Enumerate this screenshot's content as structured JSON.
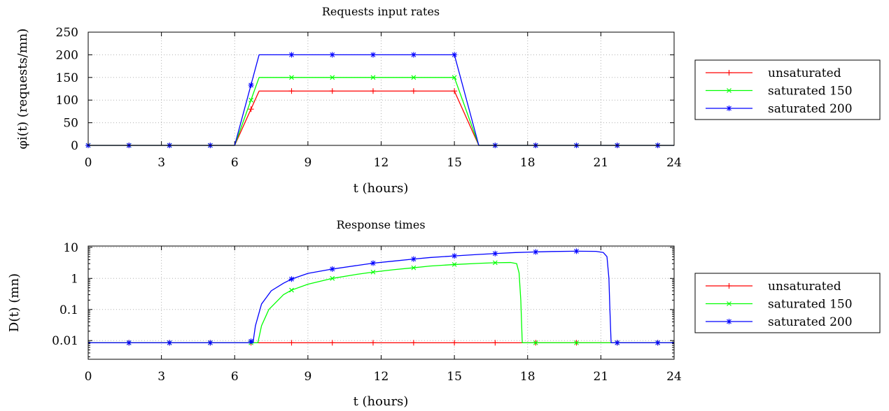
{
  "chart_data": [
    {
      "type": "line",
      "title": "Requests input rates",
      "xlabel": "t (hours)",
      "ylabel": "φi(t) (requests/mn)",
      "xlim": [
        0,
        24
      ],
      "ylim": [
        0,
        250
      ],
      "xscale": "linear",
      "yscale": "linear",
      "xticks": [
        "0",
        "3",
        "6",
        "9",
        "12",
        "15",
        "18",
        "21",
        "24"
      ],
      "yticks": [
        "0",
        "50",
        "100",
        "150",
        "200",
        "250"
      ],
      "grid": true,
      "legend_position": "right",
      "series": [
        {
          "name": "unsaturated",
          "color": "#ff0000",
          "marker": "+",
          "line": [
            [
              0,
              0
            ],
            [
              6,
              0
            ],
            [
              7,
              120
            ],
            [
              15,
              120
            ],
            [
              16,
              0
            ],
            [
              24,
              0
            ]
          ],
          "markers": [
            [
              0,
              0
            ],
            [
              1.67,
              0
            ],
            [
              3.33,
              0
            ],
            [
              5,
              0
            ],
            [
              6.67,
              80
            ],
            [
              8.33,
              120
            ],
            [
              10,
              120
            ],
            [
              11.67,
              120
            ],
            [
              13.33,
              120
            ],
            [
              15,
              120
            ],
            [
              16.67,
              0
            ],
            [
              18.33,
              0
            ],
            [
              20,
              0
            ],
            [
              21.67,
              0
            ],
            [
              23.33,
              0
            ]
          ]
        },
        {
          "name": "saturated 150",
          "color": "#00ff00",
          "marker": "x",
          "line": [
            [
              0,
              0
            ],
            [
              6,
              0
            ],
            [
              7,
              150
            ],
            [
              15,
              150
            ],
            [
              16,
              0
            ],
            [
              24,
              0
            ]
          ],
          "markers": [
            [
              0,
              0
            ],
            [
              1.67,
              0
            ],
            [
              3.33,
              0
            ],
            [
              5,
              0
            ],
            [
              6.67,
              100
            ],
            [
              8.33,
              150
            ],
            [
              10,
              150
            ],
            [
              11.67,
              150
            ],
            [
              13.33,
              150
            ],
            [
              15,
              150
            ],
            [
              16.67,
              0
            ],
            [
              18.33,
              0
            ],
            [
              20,
              0
            ],
            [
              21.67,
              0
            ],
            [
              23.33,
              0
            ]
          ]
        },
        {
          "name": "saturated 200",
          "color": "#0000ff",
          "marker": "*",
          "line": [
            [
              0,
              0
            ],
            [
              6,
              0
            ],
            [
              7,
              200
            ],
            [
              15,
              200
            ],
            [
              16,
              0
            ],
            [
              24,
              0
            ]
          ],
          "markers": [
            [
              0,
              0
            ],
            [
              1.67,
              0
            ],
            [
              3.33,
              0
            ],
            [
              5,
              0
            ],
            [
              6.67,
              133
            ],
            [
              8.33,
              200
            ],
            [
              10,
              200
            ],
            [
              11.67,
              200
            ],
            [
              13.33,
              200
            ],
            [
              15,
              200
            ],
            [
              16.67,
              0
            ],
            [
              18.33,
              0
            ],
            [
              20,
              0
            ],
            [
              21.67,
              0
            ],
            [
              23.33,
              0
            ]
          ]
        }
      ]
    },
    {
      "type": "line",
      "title": "Response times",
      "xlabel": "t (hours)",
      "ylabel": "D(t) (mn)",
      "xlim": [
        0,
        24
      ],
      "ylim": [
        0.0025,
        11
      ],
      "xscale": "linear",
      "yscale": "log",
      "xticks": [
        "0",
        "3",
        "6",
        "9",
        "12",
        "15",
        "18",
        "21",
        "24"
      ],
      "yticks": [
        {
          "value": 0.01,
          "label": "0.01"
        },
        {
          "value": 0.1,
          "label": "0.1"
        },
        {
          "value": 1,
          "label": "1"
        },
        {
          "value": 10,
          "label": "10"
        }
      ],
      "grid": true,
      "legend_position": "right",
      "series": [
        {
          "name": "unsaturated",
          "color": "#ff0000",
          "marker": "+",
          "line": [
            [
              0,
              0.0085
            ],
            [
              24,
              0.0085
            ]
          ],
          "markers": [
            [
              1.67,
              0.0085
            ],
            [
              3.33,
              0.0085
            ],
            [
              5,
              0.0085
            ],
            [
              6.67,
              0.0085
            ],
            [
              8.33,
              0.0085
            ],
            [
              10,
              0.0085
            ],
            [
              11.67,
              0.0085
            ],
            [
              13.33,
              0.0085
            ],
            [
              15,
              0.0085
            ],
            [
              16.67,
              0.0085
            ],
            [
              18.33,
              0.0085
            ],
            [
              20,
              0.0085
            ],
            [
              21.67,
              0.0085
            ],
            [
              23.33,
              0.0085
            ]
          ]
        },
        {
          "name": "saturated 150",
          "color": "#00ff00",
          "marker": "x",
          "line": [
            [
              0,
              0.0085
            ],
            [
              6.95,
              0.0085
            ],
            [
              7.1,
              0.03
            ],
            [
              7.4,
              0.1
            ],
            [
              8,
              0.3
            ],
            [
              8.33,
              0.42
            ],
            [
              9,
              0.65
            ],
            [
              10,
              1.0
            ],
            [
              11,
              1.35
            ],
            [
              11.67,
              1.6
            ],
            [
              12.5,
              1.9
            ],
            [
              13.33,
              2.2
            ],
            [
              14,
              2.5
            ],
            [
              15,
              2.8
            ],
            [
              16,
              3.05
            ],
            [
              16.67,
              3.2
            ],
            [
              17.3,
              3.25
            ],
            [
              17.55,
              3.0
            ],
            [
              17.65,
              1.5
            ],
            [
              17.72,
              0.2
            ],
            [
              17.78,
              0.0085
            ],
            [
              24,
              0.0085
            ]
          ],
          "markers": [
            [
              1.67,
              0.0085
            ],
            [
              3.33,
              0.0085
            ],
            [
              5,
              0.0085
            ],
            [
              6.67,
              0.0085
            ],
            [
              8.33,
              0.42
            ],
            [
              10,
              1.0
            ],
            [
              11.67,
              1.6
            ],
            [
              13.33,
              2.2
            ],
            [
              15,
              2.8
            ],
            [
              16.67,
              3.2
            ],
            [
              18.33,
              0.0085
            ],
            [
              20,
              0.0085
            ],
            [
              21.67,
              0.0085
            ],
            [
              23.33,
              0.0085
            ]
          ]
        },
        {
          "name": "saturated 200",
          "color": "#0000ff",
          "marker": "*",
          "line": [
            [
              0,
              0.0085
            ],
            [
              6.75,
              0.0085
            ],
            [
              6.85,
              0.03
            ],
            [
              7.1,
              0.15
            ],
            [
              7.5,
              0.4
            ],
            [
              8,
              0.7
            ],
            [
              8.33,
              0.95
            ],
            [
              9,
              1.45
            ],
            [
              10,
              2.0
            ],
            [
              11,
              2.6
            ],
            [
              11.67,
              3.1
            ],
            [
              12.5,
              3.6
            ],
            [
              13.33,
              4.2
            ],
            [
              14,
              4.7
            ],
            [
              15,
              5.3
            ],
            [
              16,
              5.9
            ],
            [
              16.67,
              6.3
            ],
            [
              17.5,
              6.8
            ],
            [
              18.33,
              7.1
            ],
            [
              19,
              7.35
            ],
            [
              20,
              7.5
            ],
            [
              20.8,
              7.4
            ],
            [
              21.1,
              6.8
            ],
            [
              21.25,
              5.0
            ],
            [
              21.33,
              1.0
            ],
            [
              21.37,
              0.1
            ],
            [
              21.42,
              0.0085
            ],
            [
              24,
              0.0085
            ]
          ],
          "markers": [
            [
              1.67,
              0.0085
            ],
            [
              3.33,
              0.0085
            ],
            [
              5,
              0.0085
            ],
            [
              6.67,
              0.0095
            ],
            [
              8.33,
              0.95
            ],
            [
              10,
              2.0
            ],
            [
              11.67,
              3.1
            ],
            [
              13.33,
              4.2
            ],
            [
              15,
              5.3
            ],
            [
              16.67,
              6.3
            ],
            [
              18.33,
              7.1
            ],
            [
              20,
              7.5
            ],
            [
              21.67,
              0.0085
            ],
            [
              23.33,
              0.0085
            ]
          ]
        }
      ]
    }
  ]
}
